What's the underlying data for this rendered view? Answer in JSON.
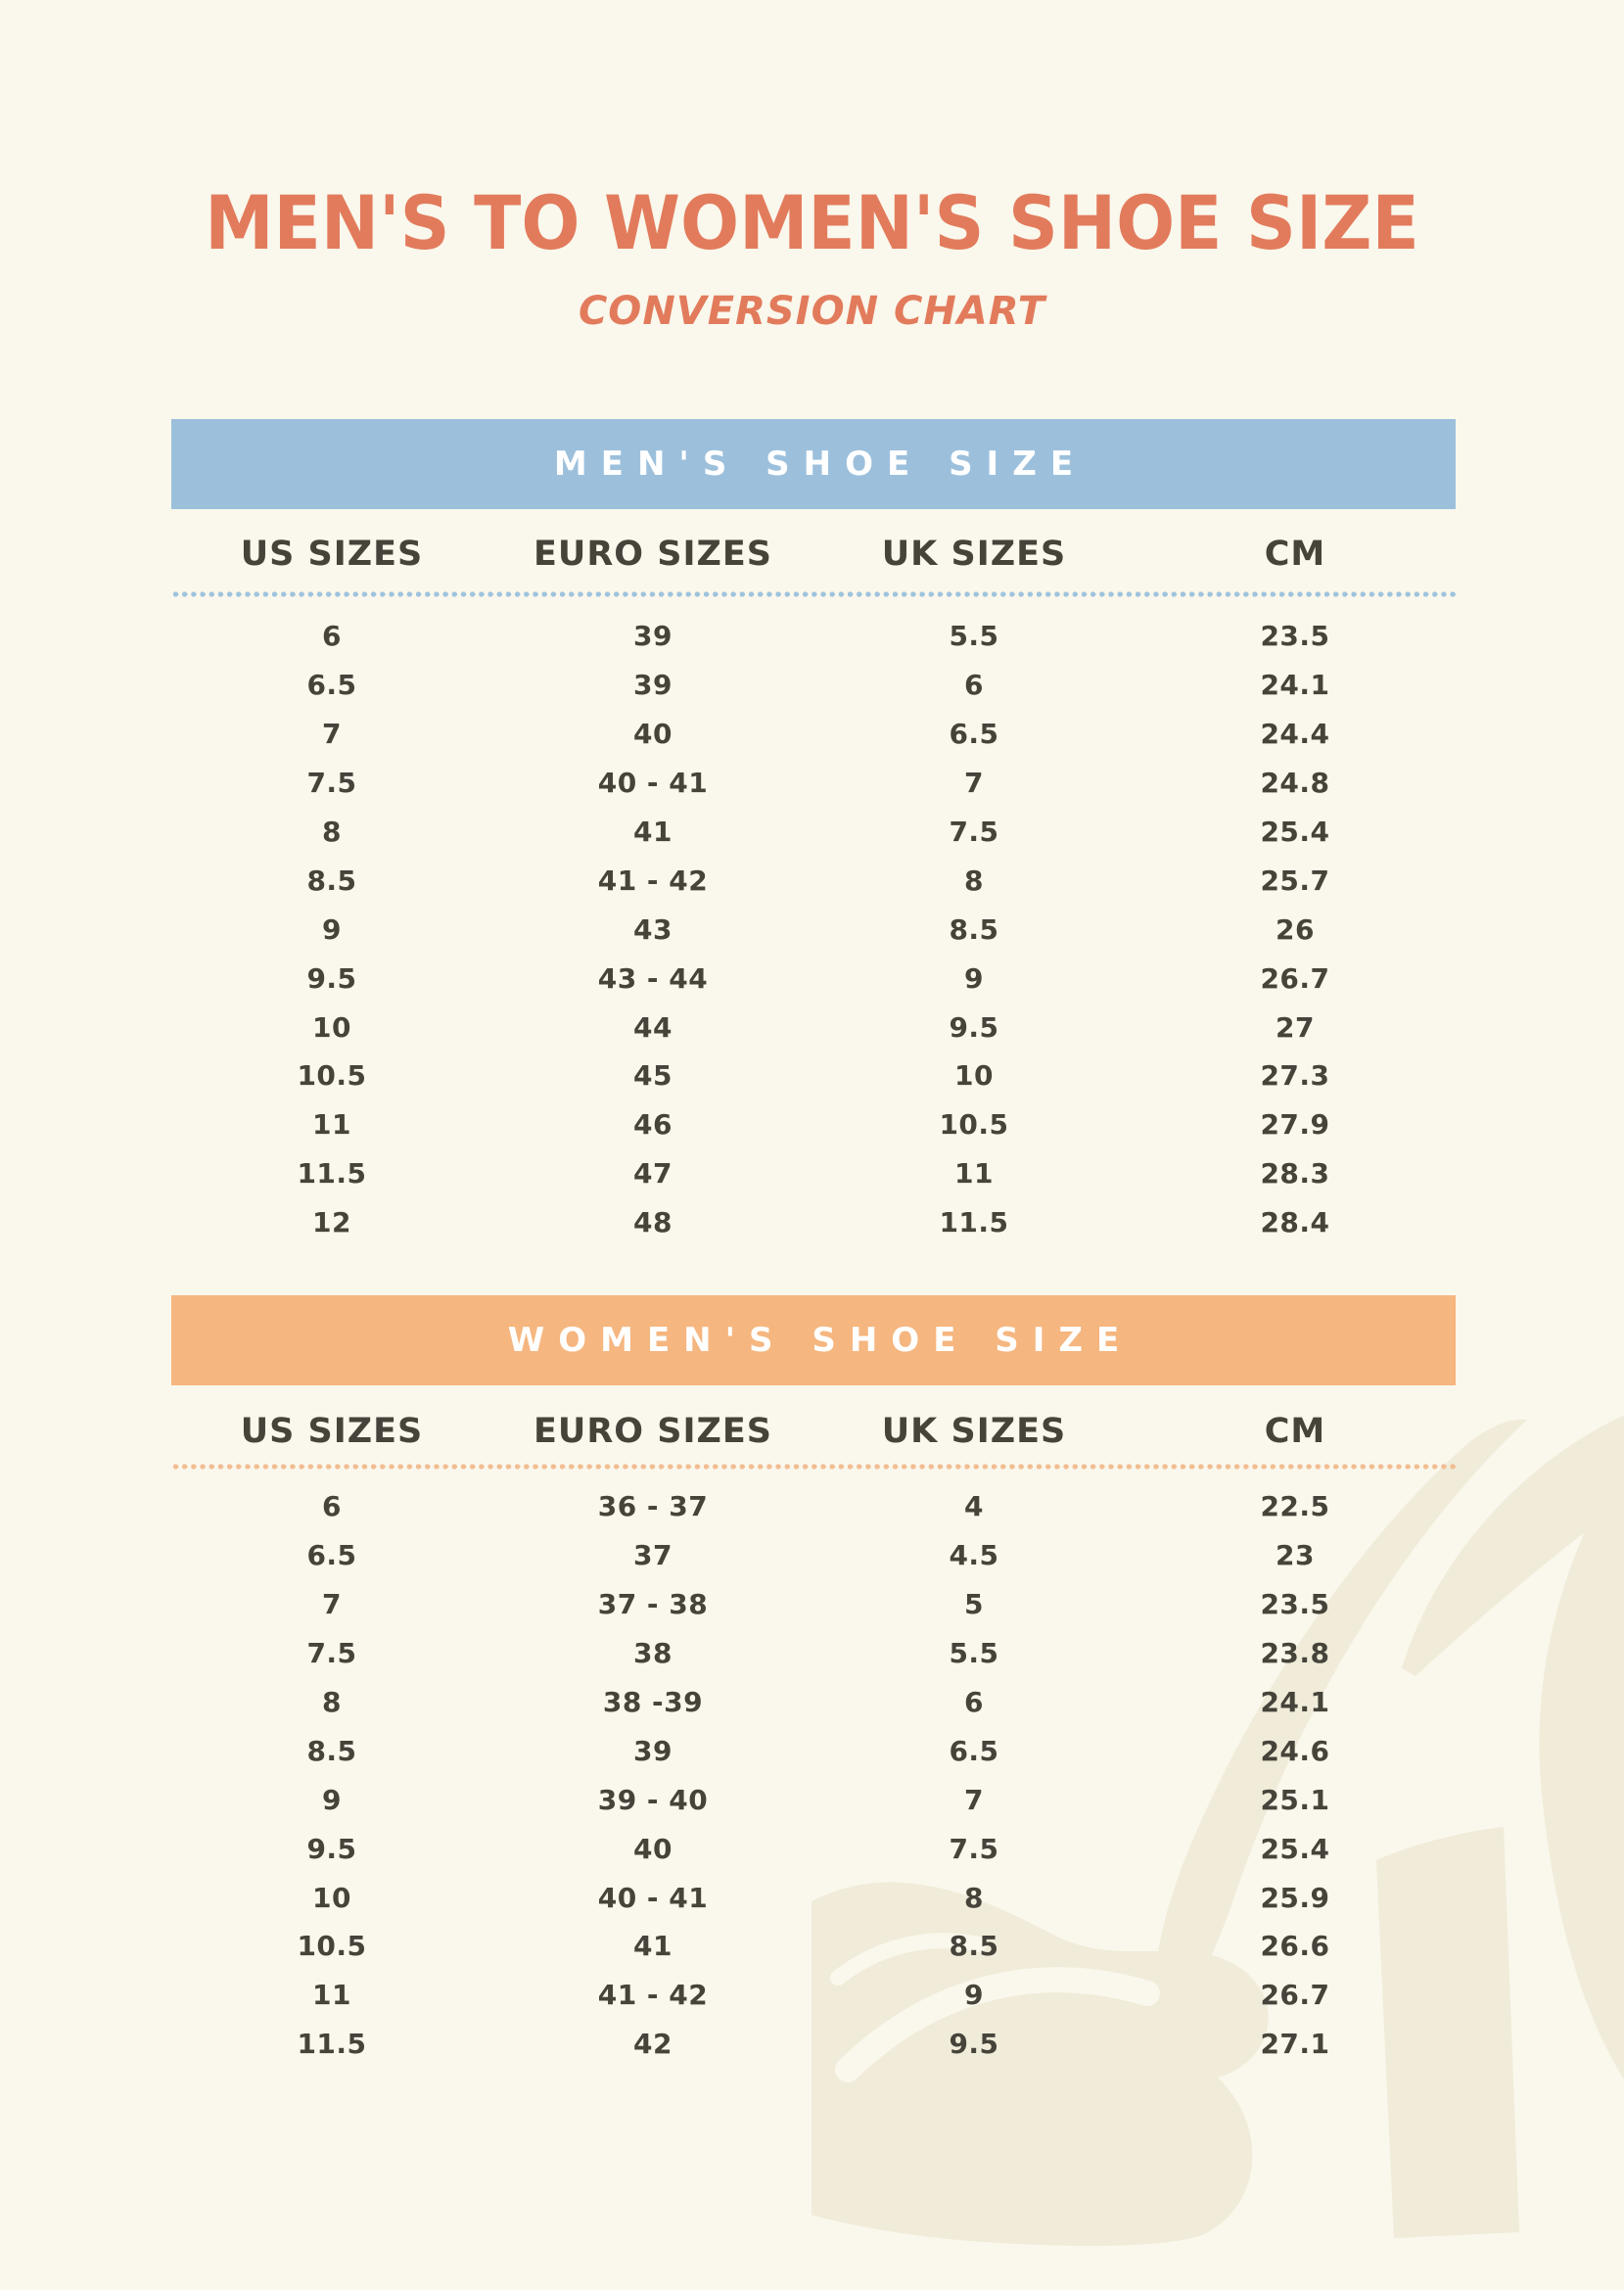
{
  "title": "MEN'S TO WOMEN'S SHOE SIZE",
  "subtitle": "CONVERSION CHART",
  "colors": {
    "background": "#faf7ec",
    "title": "#e27b5c",
    "text": "#46433b",
    "band_blue": "#9cc0dc",
    "band_orange": "#f5b67f",
    "dots_blue": "#9fc3dd",
    "dots_orange": "#f2bd92",
    "watermark": "#f0ecd9"
  },
  "sections": [
    {
      "id": "mens",
      "band_label": "MEN'S SHOE SIZE",
      "columns": [
        "US SIZES",
        "EURO SIZES",
        "UK SIZES",
        "CM"
      ],
      "rows": [
        [
          "6",
          "39",
          "5.5",
          "23.5"
        ],
        [
          "6.5",
          "39",
          "6",
          "24.1"
        ],
        [
          "7",
          "40",
          "6.5",
          "24.4"
        ],
        [
          "7.5",
          "40 - 41",
          "7",
          "24.8"
        ],
        [
          "8",
          "41",
          "7.5",
          "25.4"
        ],
        [
          "8.5",
          "41 - 42",
          "8",
          "25.7"
        ],
        [
          "9",
          "43",
          "8.5",
          "26"
        ],
        [
          "9.5",
          "43 - 44",
          "9",
          "26.7"
        ],
        [
          "10",
          "44",
          "9.5",
          "27"
        ],
        [
          "10.5",
          "45",
          "10",
          "27.3"
        ],
        [
          "11",
          "46",
          "10.5",
          "27.9"
        ],
        [
          "11.5",
          "47",
          "11",
          "28.3"
        ],
        [
          "12",
          "48",
          "11.5",
          "28.4"
        ]
      ]
    },
    {
      "id": "womens",
      "band_label": "WOMEN'S SHOE SIZE",
      "columns": [
        "US SIZES",
        "EURO SIZES",
        "UK SIZES",
        "CM"
      ],
      "rows": [
        [
          "6",
          "36 - 37",
          "4",
          "22.5"
        ],
        [
          "6.5",
          "37",
          "4.5",
          "23"
        ],
        [
          "7",
          "37 - 38",
          "5",
          "23.5"
        ],
        [
          "7.5",
          "38",
          "5.5",
          "23.8"
        ],
        [
          "8",
          "38 -39",
          "6",
          "24.1"
        ],
        [
          "8.5",
          "39",
          "6.5",
          "24.6"
        ],
        [
          "9",
          "39 - 40",
          "7",
          "25.1"
        ],
        [
          "9.5",
          "40",
          "7.5",
          "25.4"
        ],
        [
          "10",
          "40 - 41",
          "8",
          "25.9"
        ],
        [
          "10.5",
          "41",
          "8.5",
          "26.6"
        ],
        [
          "11",
          "41 - 42",
          "9",
          "26.7"
        ],
        [
          "11.5",
          "42",
          "9.5",
          "27.1"
        ]
      ]
    }
  ]
}
